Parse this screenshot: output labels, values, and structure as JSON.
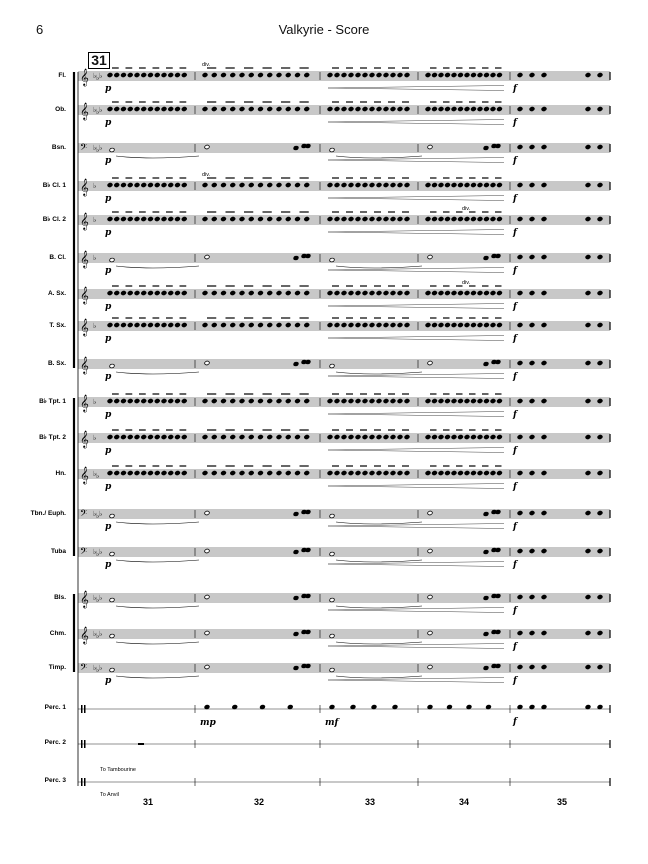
{
  "header": {
    "page_number": "6",
    "title": "Valkyrie - Score",
    "rehearsal_mark": "31"
  },
  "instruments": [
    {
      "label": "Fl.",
      "clef": "treble",
      "key": "Eb"
    },
    {
      "label": "Ob.",
      "clef": "treble",
      "key": "Eb"
    },
    {
      "label": "Bsn.",
      "clef": "bass",
      "key": "Eb"
    },
    {
      "label": "B♭ Cl. 1",
      "clef": "treble",
      "key": "F"
    },
    {
      "label": "B♭ Cl. 2",
      "clef": "treble",
      "key": "F"
    },
    {
      "label": "B. Cl.",
      "clef": "treble",
      "key": "F"
    },
    {
      "label": "A. Sx.",
      "clef": "treble",
      "key": "C"
    },
    {
      "label": "T. Sx.",
      "clef": "treble",
      "key": "F"
    },
    {
      "label": "B. Sx.",
      "clef": "treble",
      "key": "C"
    },
    {
      "label": "B♭ Tpt. 1",
      "clef": "treble",
      "key": "F"
    },
    {
      "label": "B♭ Tpt. 2",
      "clef": "treble",
      "key": "F"
    },
    {
      "label": "Hn.",
      "clef": "treble",
      "key": "Bb"
    },
    {
      "label": "Tbn./ Euph.",
      "clef": "bass",
      "key": "Eb"
    },
    {
      "label": "Tuba",
      "clef": "bass",
      "key": "Eb"
    },
    {
      "label": "Bls.",
      "clef": "treble",
      "key": "Eb"
    },
    {
      "label": "Chm.",
      "clef": "treble",
      "key": "Eb"
    },
    {
      "label": "Timp.",
      "clef": "bass",
      "key": "Eb"
    },
    {
      "label": "Perc. 1",
      "clef": "perc",
      "key": ""
    },
    {
      "label": "Perc. 2",
      "clef": "perc",
      "key": ""
    },
    {
      "label": "Perc. 3",
      "clef": "perc",
      "key": ""
    }
  ],
  "measure_numbers": [
    "31",
    "32",
    "33",
    "34",
    "35"
  ],
  "dynamics": {
    "start": "p",
    "end": "f",
    "perc_start": "mp",
    "perc_mid": "mf"
  },
  "text_marks": {
    "div": "div.",
    "to_tambourine": "To Tambourine",
    "to_anvil": "To Anvil"
  }
}
